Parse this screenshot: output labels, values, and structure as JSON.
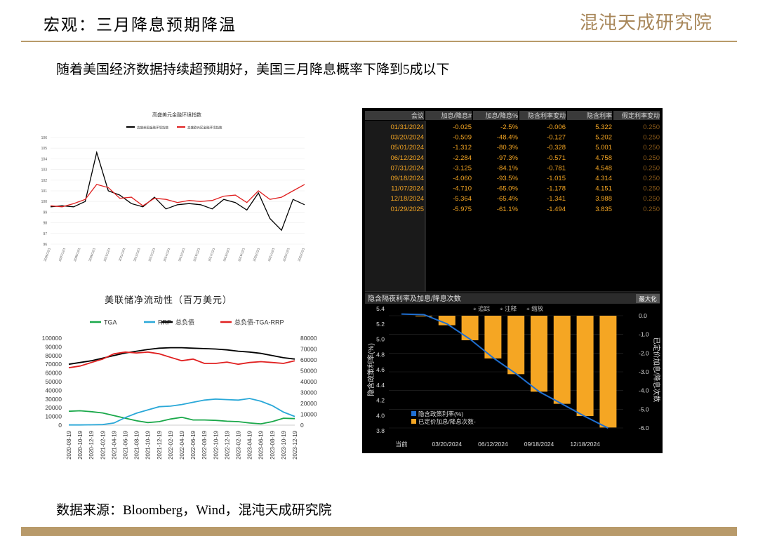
{
  "header": {
    "title": "宏观：三月降息预期降温",
    "logo_text": "混沌天成研究院"
  },
  "subtitle": "随着美国经济数据持续超预期好，美国三月降息概率下降到5成以下",
  "source": "数据来源：Bloomberg，Wind，混沌天成研究院",
  "colors": {
    "accent": "#b89a6a",
    "bloomberg_orange": "#f5a623",
    "bloomberg_blue": "#1f6fd1",
    "red": "#e02020",
    "green": "#1aa84a",
    "cyan": "#2aa8d8"
  },
  "chart_data": [
    {
      "type": "line",
      "title": "高盛美元金融环境指数",
      "legend": [
        "高盛美国金融环境指数",
        "高盛欧元区金融环境指数"
      ],
      "legend_placement": "top",
      "series_colors": [
        "#000000",
        "#e02020"
      ],
      "y_ticks": [
        "106",
        "105",
        "104",
        "103",
        "102",
        "101",
        "100",
        "99",
        "98",
        "97",
        "96"
      ],
      "ylim": [
        96,
        106
      ],
      "x_ticks": [
        "2006/12/1",
        "2007/12/1",
        "2008/12/1",
        "2009/12/1",
        "2010/12/1",
        "2011/12/1",
        "2012/12/1",
        "2013/12/1",
        "2014/12/1",
        "2015/12/1",
        "2016/12/1",
        "2017/12/1",
        "2018/12/1",
        "2019/12/1",
        "2020/12/1",
        "2021/12/1",
        "2022/12/1",
        "2023/12/1"
      ],
      "series": [
        {
          "name": "高盛美国金融环境指数",
          "values": [
            99.5,
            99.6,
            99.5,
            100.0,
            104.6,
            101.0,
            100.6,
            99.8,
            99.5,
            100.4,
            99.3,
            99.7,
            99.8,
            99.7,
            99.3,
            100.2,
            99.9,
            99.2,
            100.8,
            98.4,
            97.3,
            100.2,
            99.7
          ]
        },
        {
          "name": "高盛欧元区金融环境指数",
          "values": [
            99.6,
            99.5,
            99.8,
            100.2,
            101.6,
            101.3,
            100.3,
            100.4,
            99.6,
            100.3,
            100.2,
            99.9,
            100.1,
            100.0,
            100.1,
            100.5,
            100.6,
            99.9,
            101.0,
            100.2,
            100.4,
            101.0,
            101.6
          ]
        }
      ]
    },
    {
      "type": "line",
      "title": "美联储净流动性（百万美元）",
      "legend": [
        "TGA",
        "RRP",
        "总负债",
        "总负债-TGA-RRP"
      ],
      "legend_placement": "top",
      "series_colors": [
        "#1aa84a",
        "#2aa8d8",
        "#000000",
        "#e02020"
      ],
      "y_left_ticks": [
        "100000",
        "90000",
        "80000",
        "70000",
        "60000",
        "50000",
        "40000",
        "30000",
        "20000",
        "10000",
        "0"
      ],
      "y_right_ticks": [
        "80000",
        "70000",
        "60000",
        "50000",
        "40000",
        "30000",
        "20000",
        "10000",
        "0"
      ],
      "ylim_left": [
        0,
        100000
      ],
      "ylim_right": [
        0,
        80000
      ],
      "x_ticks": [
        "2020-08-19",
        "2020-10-19",
        "2020-12-19",
        "2021-02-19",
        "2021-04-19",
        "2021-06-19",
        "2021-08-19",
        "2021-10-19",
        "2021-12-19",
        "2022-02-19",
        "2022-04-19",
        "2022-06-19",
        "2022-08-19",
        "2022-10-19",
        "2022-12-19",
        "2023-02-19",
        "2023-04-19",
        "2023-06-19",
        "2023-08-19",
        "2023-10-19",
        "2023-12-19"
      ],
      "series": [
        {
          "name": "TGA",
          "values": [
            16000,
            16500,
            15500,
            14000,
            11000,
            8000,
            5000,
            3000,
            4000,
            7000,
            9000,
            6000,
            6000,
            5500,
            4500,
            4000,
            2500,
            1500,
            4000,
            8000,
            7500
          ]
        },
        {
          "name": "RRP",
          "values": [
            200,
            200,
            300,
            500,
            2000,
            7000,
            11000,
            14000,
            17000,
            17500,
            19000,
            21000,
            23000,
            24000,
            23500,
            23000,
            24500,
            22000,
            18000,
            12000,
            8000
          ]
        },
        {
          "name": "总负债",
          "values": [
            70000,
            72000,
            74000,
            77000,
            80000,
            83000,
            85000,
            87000,
            88500,
            89000,
            89000,
            88500,
            88000,
            87500,
            86500,
            85000,
            84000,
            82500,
            80000,
            77500,
            76000
          ]
        },
        {
          "name": "总负债-TGA-RRP",
          "values": [
            66000,
            68000,
            72000,
            76000,
            82000,
            84000,
            83000,
            84000,
            82000,
            78000,
            74000,
            76000,
            71000,
            71000,
            72500,
            70000,
            72000,
            73000,
            72000,
            71000,
            74000
          ]
        }
      ]
    },
    {
      "type": "table",
      "columns": [
        "会议",
        "加息/降息#",
        "加息/降息%",
        "隐含利率变动",
        "隐含利率",
        "假定利率变动"
      ],
      "rows": [
        [
          "01/31/2024",
          "-0.025",
          "-2.5%",
          "-0.006",
          "5.322",
          "0.250"
        ],
        [
          "03/20/2024",
          "-0.509",
          "-48.4%",
          "-0.127",
          "5.202",
          "0.250"
        ],
        [
          "05/01/2024",
          "-1.312",
          "-80.3%",
          "-0.328",
          "5.001",
          "0.250"
        ],
        [
          "06/12/2024",
          "-2.284",
          "-97.3%",
          "-0.571",
          "4.758",
          "0.250"
        ],
        [
          "07/31/2024",
          "-3.125",
          "-84.1%",
          "-0.781",
          "4.548",
          "0.250"
        ],
        [
          "09/18/2024",
          "-4.060",
          "-93.5%",
          "-1.015",
          "4.314",
          "0.250"
        ],
        [
          "11/07/2024",
          "-4.710",
          "-65.0%",
          "-1.178",
          "4.151",
          "0.250"
        ],
        [
          "12/18/2024",
          "-5.364",
          "-65.4%",
          "-1.341",
          "3.988",
          "0.250"
        ],
        [
          "01/29/2025",
          "-5.975",
          "-61.1%",
          "-1.494",
          "3.835",
          "0.250"
        ]
      ]
    },
    {
      "type": "bar",
      "title": "隐含隔夜利率及加息/降息次数",
      "zoom_label": "最大化",
      "toolbar": [
        "追踪",
        "注释",
        "缩放"
      ],
      "categories": [
        "当前",
        "01/31/2024",
        "03/20/2024",
        "05/01/2024",
        "06/12/2024",
        "07/31/2024",
        "09/18/2024",
        "11/07/2024",
        "12/18/2024",
        "01/29/2025"
      ],
      "x_tick_labels": [
        "当前",
        "03/20/2024",
        "06/12/2024",
        "09/18/2024",
        "12/18/2024"
      ],
      "ylabel_left": "隐含政策利率(%)",
      "ylabel_right": "已定价加息/降息次数",
      "ylim_left": [
        3.8,
        5.4
      ],
      "ylim_right": [
        -6.0,
        0.0
      ],
      "y_left_ticks": [
        "5.4",
        "5.2",
        "5.0",
        "4.8",
        "4.6",
        "4.4",
        "4.2",
        "4.0",
        "3.8"
      ],
      "y_right_ticks": [
        "0.0",
        "-1.0",
        "-2.0",
        "-3.0",
        "-4.0",
        "-5.0",
        "-6.0"
      ],
      "legend": [
        "隐含政策利率(%)",
        "已定价加息/降息次数-"
      ],
      "legend_placement": "bottom-left",
      "series": [
        {
          "name": "已定价加息/降息次数-",
          "axis": "right",
          "values": [
            null,
            -0.025,
            -0.509,
            -1.312,
            -2.284,
            -3.125,
            -4.06,
            -4.71,
            -5.364,
            -5.975
          ]
        },
        {
          "name": "隐含政策利率(%)",
          "axis": "left",
          "values": [
            5.33,
            5.322,
            5.202,
            5.001,
            4.758,
            4.548,
            4.314,
            4.151,
            3.988,
            3.835
          ]
        }
      ]
    }
  ]
}
